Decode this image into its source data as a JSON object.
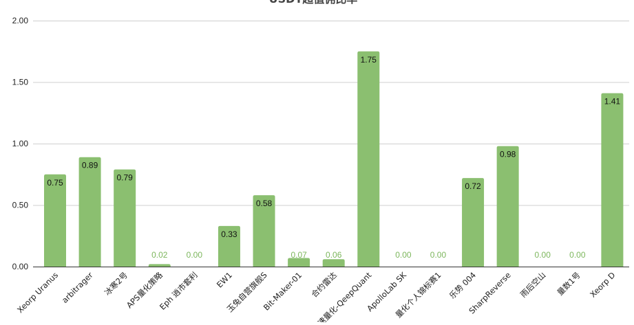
{
  "chart_data": {
    "type": "bar",
    "title": "USDT超值佣比率",
    "xlabel": "",
    "ylabel": "",
    "ylim": [
      0,
      2.0
    ],
    "y_ticks": [
      "0.00",
      "0.50",
      "1.00",
      "1.50",
      "2.00"
    ],
    "grid": true,
    "legend": "none",
    "bar_color": "#8bbf70",
    "label_outside_color": "#7cb65c",
    "categories": [
      "Xeorp Uranus",
      "arbitrager",
      "冰寒2号",
      "APS量化策略",
      "Eph 逍市套利",
      "EW1",
      "玉兔自营旗舰S",
      "Bit-Maker-01",
      "合约雷达",
      "速量化-QeepQuant",
      "ApolloLab SK",
      "量化个人锦标赛1",
      "乐势 004",
      "SharpReverse",
      "雨后空山",
      "量数1号",
      "Xeorp D"
    ],
    "values": [
      0.75,
      0.89,
      0.79,
      0.02,
      0.0,
      0.33,
      0.58,
      0.07,
      0.06,
      1.75,
      0.0,
      0.0,
      0.72,
      0.98,
      0.0,
      0.0,
      1.41
    ],
    "data_labels": [
      "0.75",
      "0.89",
      "0.79",
      "0.02",
      "0.00",
      "0.33",
      "0.58",
      "0.07",
      "0.06",
      "1.75",
      "0.00",
      "0.00",
      "0.72",
      "0.98",
      "0.00",
      "0.00",
      "1.41"
    ]
  }
}
